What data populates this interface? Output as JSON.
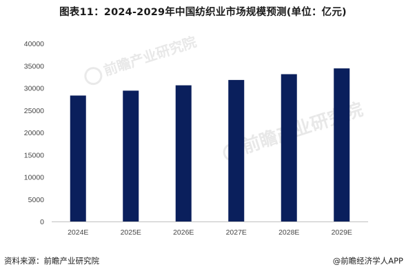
{
  "title": "图表11：2024-2029年中国纺织业市场规模预测(单位：亿元)",
  "footer": {
    "source": "资料来源：前瞻产业研究院",
    "brand": "@前瞻经济学人APP"
  },
  "watermark": {
    "logo_text": "前瞻产业研究院"
  },
  "colors": {
    "bar": "#0a1f5c",
    "axis": "#bfbfbf"
  },
  "chart_data": {
    "type": "bar",
    "title": "图表11：2024-2029年中国纺织业市场规模预测(单位：亿元)",
    "categories": [
      "2024E",
      "2025E",
      "2026E",
      "2027E",
      "2028E",
      "2029E"
    ],
    "values": [
      28300,
      29400,
      30600,
      31800,
      33100,
      34400
    ],
    "ylim": [
      0,
      40000
    ],
    "yticks": [
      0,
      5000,
      10000,
      15000,
      20000,
      25000,
      30000,
      35000,
      40000
    ],
    "grid": false,
    "legend": "none"
  }
}
